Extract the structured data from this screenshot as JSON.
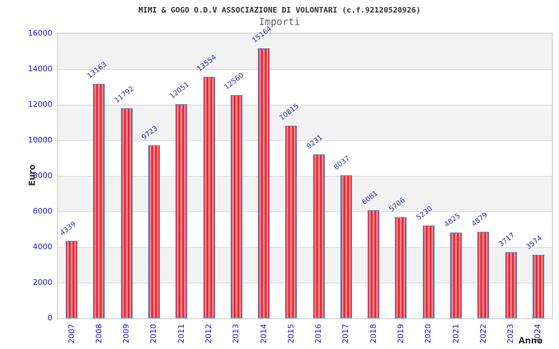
{
  "title": "MIMI & GOGO O.D.V ASSOCIAZIONE DI VOLONTARI (c.f.92120520926)",
  "subtitle": "Importi",
  "chart_data": {
    "type": "bar",
    "title": "MIMI & GOGO O.D.V ASSOCIAZIONE DI VOLONTARI (c.f.92120520926)",
    "subtitle": "Importi",
    "categories": [
      "2007",
      "2008",
      "2009",
      "2010",
      "2011",
      "2012",
      "2013",
      "2014",
      "2015",
      "2016",
      "2017",
      "2018",
      "2019",
      "2020",
      "2021",
      "2022",
      "2023",
      "2024"
    ],
    "values": [
      4339,
      13163,
      11792,
      9723,
      12051,
      13554,
      12560,
      15164,
      10815,
      9231,
      8037,
      6081,
      5706,
      5230,
      4825,
      4879,
      3717,
      3574
    ],
    "xlabel": "Anno",
    "ylabel": "Euro",
    "ylim": [
      0,
      16000
    ],
    "yticks": [
      0,
      2000,
      4000,
      6000,
      8000,
      10000,
      12000,
      14000,
      16000
    ],
    "grid": true,
    "legend_position": "none",
    "value_labels": true,
    "value_label_rotation_deg": -38,
    "x_tick_rotation_deg": -90,
    "band_fill_alternating": true
  },
  "colors": {
    "bar_fill_dark": "#e01023",
    "bar_fill_light": "#f59f9f",
    "bar_border": "#5b9bd5",
    "tick_label": "#1a1aee",
    "value_label": "#3333aa",
    "band": "#f2f2f2",
    "grid": "#dcdcdc",
    "axis_border": "#c9c9c9",
    "title": "#333333",
    "subtitle": "#666666",
    "axis_title": "#333333"
  }
}
